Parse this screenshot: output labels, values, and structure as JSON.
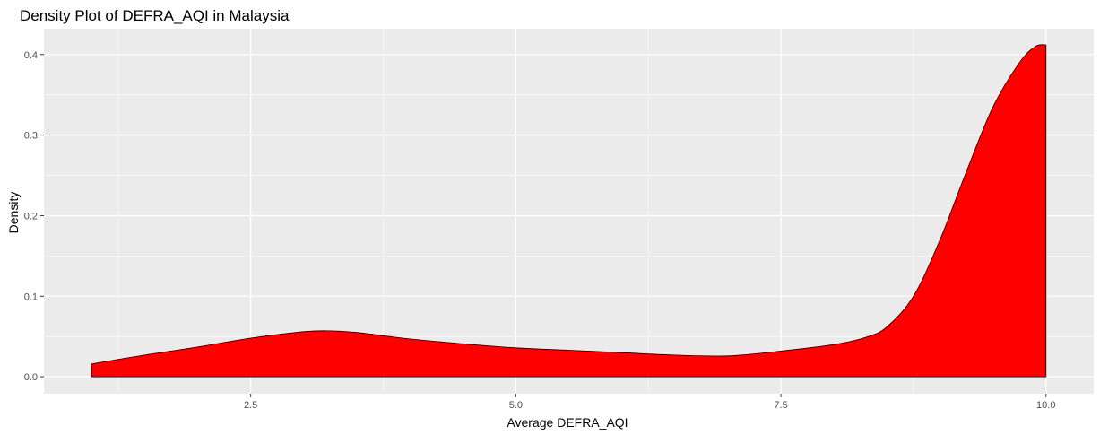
{
  "chart_data": {
    "type": "area",
    "title": "Density Plot of DEFRA_AQI in Malaysia",
    "xlabel": "Average DEFRA_AQI",
    "ylabel": "Density",
    "xlim": [
      0.55,
      10.45
    ],
    "ylim": [
      -0.021,
      0.432
    ],
    "grid": true,
    "legend": "none",
    "x_ticks": [
      2.5,
      5.0,
      7.5,
      10.0
    ],
    "x_tick_labels": [
      "2.5",
      "5.0",
      "7.5",
      "10.0"
    ],
    "y_ticks": [
      0.0,
      0.1,
      0.2,
      0.3,
      0.4
    ],
    "y_tick_labels": [
      "0.0",
      "0.1",
      "0.2",
      "0.3",
      "0.4"
    ],
    "fill_color": "#ff0000",
    "outline_color": "#000000",
    "panel_background": "#ebebeb",
    "series": [
      {
        "x": [
          1.0,
          1.5,
          2.0,
          2.5,
          3.0,
          3.25,
          3.5,
          4.0,
          4.5,
          5.0,
          5.5,
          6.0,
          6.5,
          7.0,
          7.5,
          8.0,
          8.3,
          8.5,
          8.75,
          9.0,
          9.25,
          9.5,
          9.75,
          9.9,
          10.0
        ],
        "y": [
          0.016,
          0.027,
          0.037,
          0.048,
          0.056,
          0.057,
          0.055,
          0.047,
          0.041,
          0.036,
          0.033,
          0.03,
          0.027,
          0.026,
          0.032,
          0.04,
          0.049,
          0.062,
          0.1,
          0.17,
          0.255,
          0.335,
          0.39,
          0.41,
          0.412
        ]
      }
    ]
  }
}
